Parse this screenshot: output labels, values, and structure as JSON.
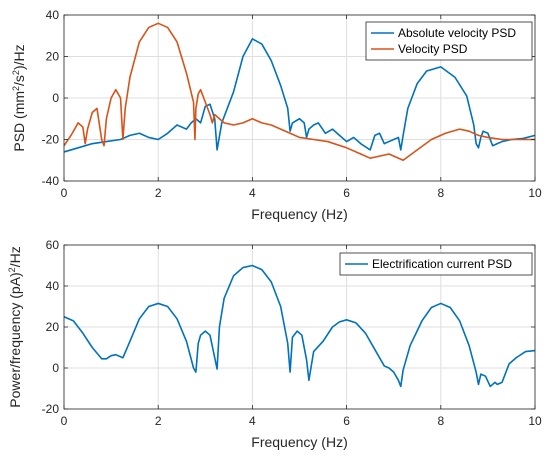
{
  "colors": {
    "blue": "#0072BD",
    "orange": "#D95319",
    "grid": "#DFDFDF",
    "axis": "#262626"
  },
  "chart_data": [
    {
      "type": "line",
      "xlabel": "Frequency (Hz)",
      "ylabel_parts": [
        "PSD (mm",
        "2",
        "/s",
        "2",
        ")/Hz"
      ],
      "xlim": [
        0,
        10
      ],
      "ylim": [
        -40,
        40
      ],
      "xticks": [
        "0",
        "2",
        "4",
        "6",
        "8",
        "10"
      ],
      "yticks": [
        "-40",
        "-20",
        "0",
        "20",
        "40"
      ],
      "grid": true,
      "legend_position": "top-right",
      "series": [
        {
          "name": "Absolute velocity PSD",
          "color": "#0072BD",
          "x": [
            0,
            0.3,
            0.6,
            0.9,
            1.2,
            1.4,
            1.6,
            1.8,
            2.0,
            2.2,
            2.4,
            2.6,
            2.7,
            2.8,
            2.9,
            3.0,
            3.1,
            3.2,
            3.25,
            3.35,
            3.45,
            3.6,
            3.8,
            4.0,
            4.2,
            4.4,
            4.6,
            4.75,
            4.8,
            4.85,
            5.0,
            5.1,
            5.15,
            5.2,
            5.3,
            5.4,
            5.55,
            5.7,
            5.85,
            6.0,
            6.15,
            6.3,
            6.5,
            6.6,
            6.7,
            6.8,
            6.9,
            7.0,
            7.1,
            7.15,
            7.2,
            7.3,
            7.5,
            7.7,
            8.0,
            8.3,
            8.55,
            8.7,
            8.75,
            8.8,
            8.85,
            8.9,
            9.0,
            9.1,
            9.2,
            9.3,
            9.5,
            9.75,
            10.0
          ],
          "y": [
            -26,
            -24,
            -22,
            -21,
            -20,
            -18,
            -17,
            -19,
            -20,
            -17,
            -13,
            -15,
            -12,
            -10,
            -12,
            -4,
            -3,
            -10,
            -25,
            -12,
            -6,
            3,
            20,
            28.5,
            26,
            18,
            6,
            -5,
            -16,
            -12,
            -10,
            -12,
            -19,
            -15,
            -13,
            -12,
            -17,
            -15,
            -18,
            -21,
            -19,
            -22,
            -25,
            -18,
            -17,
            -22,
            -21,
            -20,
            -19,
            -25,
            -18,
            -5,
            7,
            13,
            15,
            10,
            1,
            -13,
            -22,
            -24,
            -19,
            -16,
            -17,
            -23,
            -22,
            -21,
            -20,
            -19.5,
            -18
          ]
        },
        {
          "name": "Velocity PSD",
          "color": "#D95319",
          "x": [
            0,
            0.15,
            0.3,
            0.4,
            0.45,
            0.5,
            0.6,
            0.7,
            0.8,
            0.85,
            0.9,
            1.0,
            1.1,
            1.2,
            1.25,
            1.3,
            1.4,
            1.6,
            1.8,
            2.0,
            2.2,
            2.4,
            2.6,
            2.75,
            2.78,
            2.8,
            2.85,
            2.9,
            3.0,
            3.1,
            3.15,
            3.2,
            3.3,
            3.4,
            3.6,
            3.8,
            4.0,
            4.2,
            4.4,
            4.6,
            4.8,
            5.0,
            5.3,
            5.6,
            6.0,
            6.3,
            6.5,
            6.7,
            6.9,
            7.2,
            7.5,
            7.8,
            8.1,
            8.4,
            8.6,
            8.8,
            9.0,
            9.3,
            9.6,
            10.0
          ],
          "y": [
            -23,
            -18,
            -12,
            -14,
            -22,
            -15,
            -7,
            -5,
            -20,
            -23,
            -10,
            0,
            4,
            0,
            -20,
            -5,
            10,
            27,
            34,
            36,
            34,
            27,
            12,
            -2,
            -20,
            -5,
            2,
            4,
            -2,
            -8,
            -12,
            -8,
            -10,
            -12,
            -13,
            -12,
            -10,
            -12,
            -13,
            -15,
            -17,
            -19,
            -20,
            -21,
            -24,
            -27,
            -29,
            -28,
            -27,
            -30,
            -25,
            -20,
            -17,
            -15,
            -16,
            -18,
            -19,
            -20,
            -20,
            -20
          ]
        }
      ]
    },
    {
      "type": "line",
      "xlabel": "Frequency (Hz)",
      "ylabel_parts": [
        "Power/frequency (pA)",
        "2",
        "/Hz"
      ],
      "xlim": [
        0,
        10
      ],
      "ylim": [
        -20,
        60
      ],
      "xticks": [
        "0",
        "2",
        "4",
        "6",
        "8",
        "10"
      ],
      "yticks": [
        "-20",
        "0",
        "20",
        "40",
        "60"
      ],
      "grid": true,
      "legend_position": "top-right",
      "series": [
        {
          "name": "Electrification current PSD",
          "color": "#0072BD",
          "x": [
            0,
            0.2,
            0.4,
            0.6,
            0.8,
            0.9,
            1.0,
            1.1,
            1.25,
            1.4,
            1.6,
            1.8,
            2.0,
            2.2,
            2.4,
            2.6,
            2.75,
            2.8,
            2.85,
            2.9,
            3.0,
            3.1,
            3.2,
            3.25,
            3.3,
            3.4,
            3.6,
            3.8,
            4.0,
            4.2,
            4.4,
            4.6,
            4.75,
            4.8,
            4.85,
            4.95,
            5.05,
            5.15,
            5.2,
            5.3,
            5.5,
            5.7,
            5.85,
            6.0,
            6.2,
            6.4,
            6.6,
            6.8,
            6.9,
            7.0,
            7.1,
            7.15,
            7.2,
            7.35,
            7.6,
            7.8,
            8.0,
            8.2,
            8.4,
            8.6,
            8.75,
            8.8,
            8.85,
            8.95,
            9.05,
            9.15,
            9.2,
            9.3,
            9.45,
            9.6,
            9.8,
            10.0
          ],
          "y": [
            25,
            23,
            17,
            10,
            4.5,
            4.5,
            6,
            6.5,
            5,
            13,
            24,
            30,
            31.5,
            30,
            24,
            13,
            0,
            -2,
            12,
            16,
            18,
            16,
            5,
            -0.5,
            20,
            34,
            45,
            49,
            50,
            48,
            42,
            30,
            12,
            -2,
            15,
            18,
            16,
            4,
            -6,
            8,
            13,
            20,
            22.5,
            23.5,
            22,
            17,
            9,
            1,
            0,
            -2,
            -6,
            -9,
            -1,
            11,
            23,
            29.5,
            31.5,
            29.5,
            23,
            11,
            -2,
            -8,
            -3,
            -4,
            -9,
            -7,
            -8,
            -7,
            2,
            5,
            8,
            8.5
          ]
        }
      ]
    }
  ]
}
